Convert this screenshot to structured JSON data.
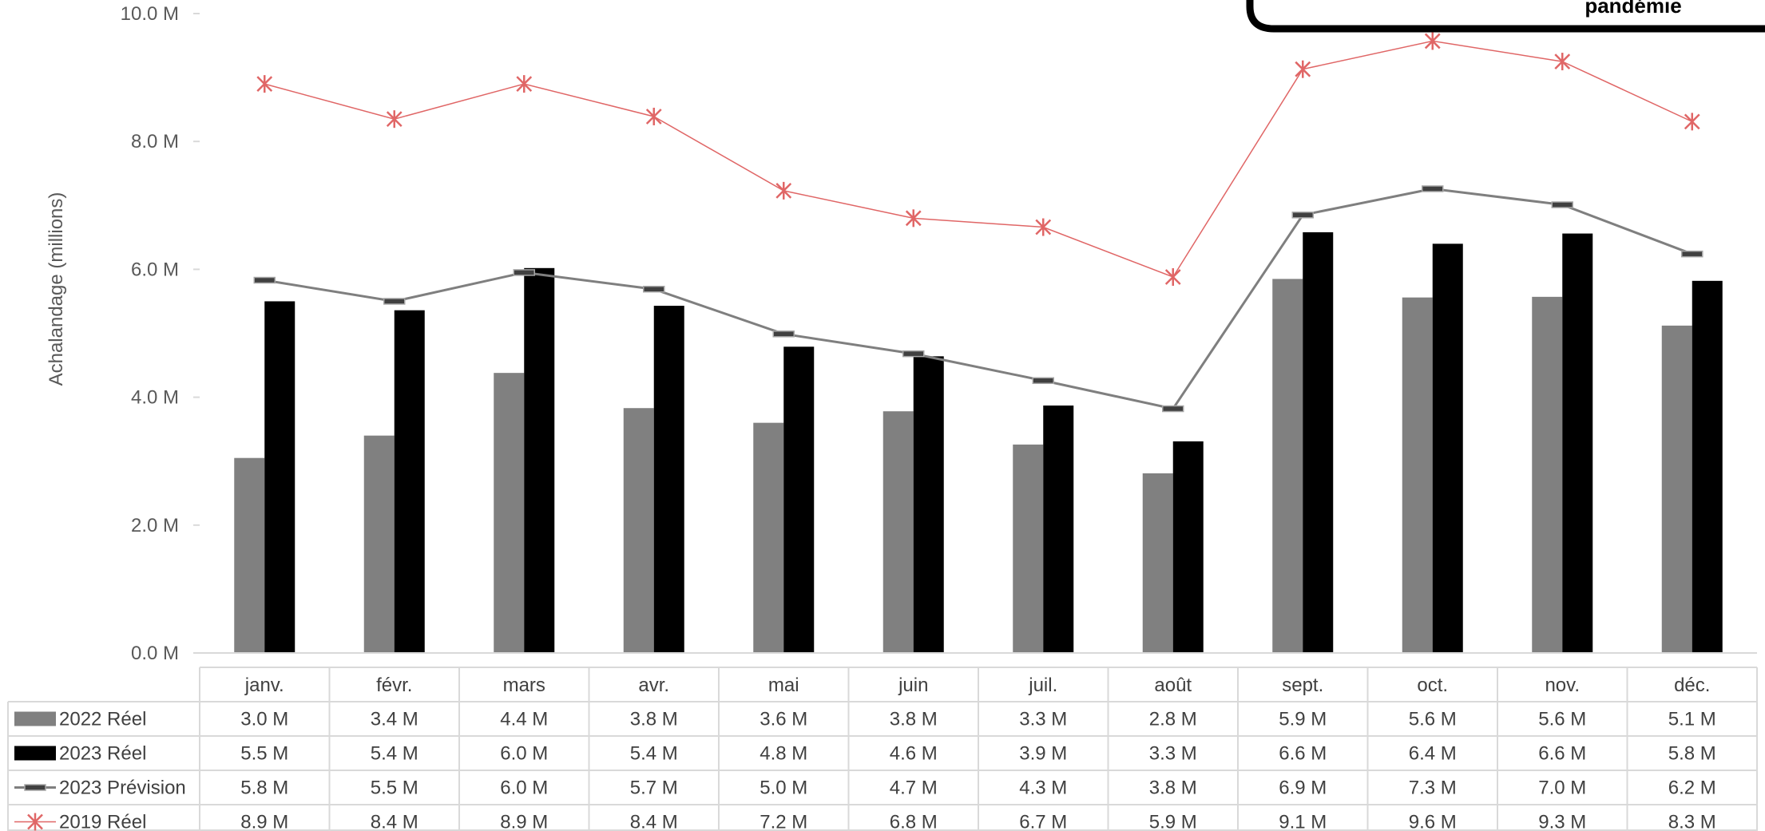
{
  "chart_data": {
    "type": "bar",
    "ylabel": "Achalandage (millions)",
    "ylim": [
      0,
      10
    ],
    "yticks": [
      "0.0 M",
      "2.0 M",
      "4.0 M",
      "6.0 M",
      "8.0 M",
      "10.0 M"
    ],
    "categories": [
      "janv.",
      "févr.",
      "mars",
      "avr.",
      "mai",
      "juin",
      "juil.",
      "août",
      "sept.",
      "oct.",
      "nov.",
      "déc."
    ],
    "series": [
      {
        "name": "2022 Réel",
        "kind": "bar",
        "color": "#808080",
        "values": [
          3.05,
          3.4,
          4.38,
          3.83,
          3.6,
          3.78,
          3.26,
          2.81,
          5.85,
          5.56,
          5.57,
          5.12
        ],
        "labels": [
          "3.0 M",
          "3.4 M",
          "4.4 M",
          "3.8 M",
          "3.6 M",
          "3.8 M",
          "3.3 M",
          "2.8 M",
          "5.9 M",
          "5.6 M",
          "5.6 M",
          "5.1 M"
        ]
      },
      {
        "name": "2023 Réel",
        "kind": "bar",
        "color": "#000000",
        "values": [
          5.5,
          5.36,
          6.02,
          5.43,
          4.79,
          4.64,
          3.87,
          3.31,
          6.58,
          6.4,
          6.56,
          5.82
        ],
        "labels": [
          "5.5 M",
          "5.4 M",
          "6.0 M",
          "5.4 M",
          "4.8 M",
          "4.6 M",
          "3.9 M",
          "3.3 M",
          "6.6 M",
          "6.4 M",
          "6.6 M",
          "5.8 M"
        ]
      },
      {
        "name": "2023 Prévision",
        "kind": "line",
        "marker": "dash",
        "color": "#7f7f7f",
        "values": [
          5.83,
          5.5,
          5.95,
          5.69,
          4.99,
          4.68,
          4.26,
          3.82,
          6.85,
          7.26,
          7.01,
          6.24
        ],
        "labels": [
          "5.8 M",
          "5.5 M",
          "6.0 M",
          "5.7 M",
          "5.0 M",
          "4.7 M",
          "4.3 M",
          "3.8 M",
          "6.9 M",
          "7.3 M",
          "7.0 M",
          "6.2 M"
        ]
      },
      {
        "name": "2019 Réel",
        "kind": "line",
        "marker": "asterisk",
        "color": "#e06666",
        "values": [
          8.9,
          8.35,
          8.9,
          8.39,
          7.23,
          6.8,
          6.66,
          5.88,
          9.13,
          9.57,
          9.25,
          8.31
        ],
        "labels": [
          "8.9 M",
          "8.4 M",
          "8.9 M",
          "8.4 M",
          "7.2 M",
          "6.8 M",
          "6.7 M",
          "5.9 M",
          "9.1 M",
          "9.6 M",
          "9.3 M",
          "8.3 M"
        ]
      }
    ],
    "annotation": "pandémie",
    "grid": false,
    "legend": "data-table"
  }
}
